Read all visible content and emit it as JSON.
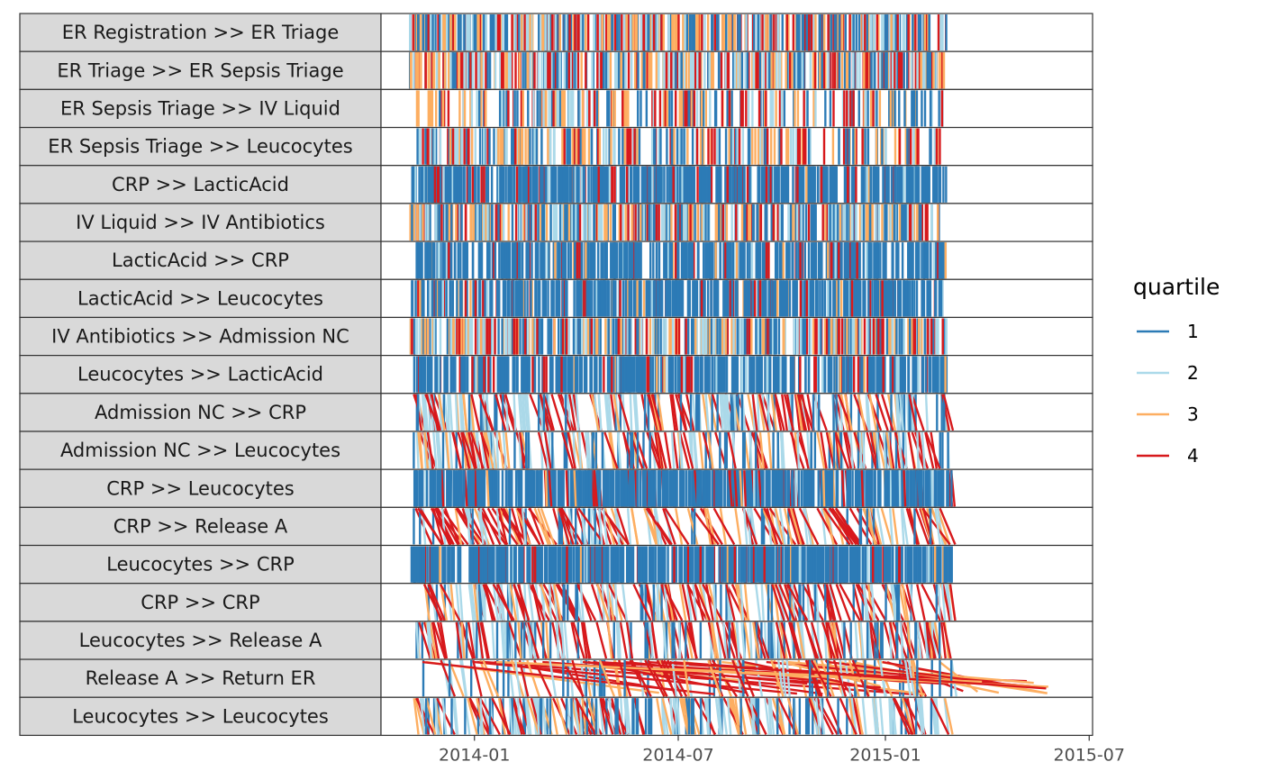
{
  "chart_data": {
    "type": "line",
    "chart_style": "faceted dotted chart of activity transitions (segment from start to end time)",
    "title": "",
    "xlabel": "",
    "ylabel": "",
    "x_type": "date",
    "xlim": [
      "2013-10-10",
      "2015-07-04"
    ],
    "x_ticks": [
      "2014-01-01",
      "2014-07-01",
      "2015-01-01",
      "2015-07-01"
    ],
    "x_tick_labels": [
      "2014-01",
      "2014-07",
      "2015-01",
      "2015-07"
    ],
    "grid": false,
    "legend": {
      "title": "quartile",
      "position": "right",
      "entries": [
        {
          "label": "1",
          "color": "#2c7bb6"
        },
        {
          "label": "2",
          "color": "#abd9e9"
        },
        {
          "label": "3",
          "color": "#fdae61"
        },
        {
          "label": "4",
          "color": "#d7191c"
        }
      ]
    },
    "facets": [
      {
        "label": "ER Registration >> ER Triage",
        "start": "2013-11-04",
        "end": "2015-02-26",
        "mix": [
          0.32,
          0.24,
          0.22,
          0.22
        ],
        "skew_days": 0,
        "long_q": null,
        "density": 520
      },
      {
        "label": "ER Triage >> ER Sepsis Triage",
        "start": "2013-11-04",
        "end": "2015-02-26",
        "mix": [
          0.3,
          0.24,
          0.22,
          0.24
        ],
        "skew_days": 0,
        "long_q": null,
        "density": 460
      },
      {
        "label": "ER Sepsis Triage >> IV Liquid",
        "start": "2013-11-10",
        "end": "2015-02-22",
        "mix": [
          0.3,
          0.24,
          0.22,
          0.24
        ],
        "skew_days": 0,
        "long_q": null,
        "density": 230
      },
      {
        "label": "ER Sepsis Triage >> Leucocytes",
        "start": "2013-11-10",
        "end": "2015-02-22",
        "mix": [
          0.3,
          0.24,
          0.22,
          0.24
        ],
        "skew_days": 0,
        "long_q": null,
        "density": 260
      },
      {
        "label": "CRP >> LacticAcid",
        "start": "2013-11-05",
        "end": "2015-02-26",
        "mix": [
          0.82,
          0.05,
          0.03,
          0.1
        ],
        "skew_days": 0,
        "long_q": null,
        "density": 520
      },
      {
        "label": "IV Liquid >> IV Antibiotics",
        "start": "2013-11-05",
        "end": "2015-02-22",
        "mix": [
          0.3,
          0.22,
          0.26,
          0.22
        ],
        "skew_days": 0,
        "long_q": null,
        "density": 460
      },
      {
        "label": "LacticAcid >> CRP",
        "start": "2013-11-10",
        "end": "2015-02-25",
        "mix": [
          0.88,
          0.04,
          0.02,
          0.06
        ],
        "skew_days": 0,
        "long_q": null,
        "density": 420
      },
      {
        "label": "LacticAcid >> Leucocytes",
        "start": "2013-11-05",
        "end": "2015-02-25",
        "mix": [
          0.8,
          0.05,
          0.04,
          0.11
        ],
        "skew_days": 0,
        "long_q": null,
        "density": 460
      },
      {
        "label": "IV Antibiotics >> Admission NC",
        "start": "2013-11-05",
        "end": "2015-02-26",
        "mix": [
          0.3,
          0.24,
          0.24,
          0.22
        ],
        "skew_days": 0,
        "long_q": null,
        "density": 460
      },
      {
        "label": "Leucocytes >> LacticAcid",
        "start": "2013-11-08",
        "end": "2015-02-25",
        "mix": [
          0.8,
          0.05,
          0.04,
          0.11
        ],
        "skew_days": 0,
        "long_q": null,
        "density": 440
      },
      {
        "label": "Admission NC >> CRP",
        "start": "2013-11-08",
        "end": "2015-02-26",
        "mix": [
          0.25,
          0.33,
          0.17,
          0.25
        ],
        "skew_days": 4,
        "long_q": null,
        "density": 240
      },
      {
        "label": "Admission NC >> Leucocytes",
        "start": "2013-11-06",
        "end": "2015-02-26",
        "mix": [
          0.25,
          0.33,
          0.17,
          0.25
        ],
        "skew_days": 4,
        "long_q": null,
        "density": 240
      },
      {
        "label": "CRP >> Leucocytes",
        "start": "2013-11-06",
        "end": "2015-03-01",
        "mix": [
          0.86,
          0.03,
          0.02,
          0.09
        ],
        "skew_days": 1,
        "long_q": null,
        "density": 600
      },
      {
        "label": "CRP >> Release A",
        "start": "2013-11-08",
        "end": "2015-02-28",
        "mix": [
          0.14,
          0.22,
          0.22,
          0.42
        ],
        "skew_days": 8,
        "long_q": null,
        "density": 200
      },
      {
        "label": "Leucocytes >> CRP",
        "start": "2013-11-04",
        "end": "2015-03-01",
        "mix": [
          0.88,
          0.03,
          0.02,
          0.07
        ],
        "skew_days": 0,
        "long_q": null,
        "density": 620
      },
      {
        "label": "CRP >> CRP",
        "start": "2013-11-10",
        "end": "2015-02-28",
        "mix": [
          0.18,
          0.3,
          0.14,
          0.38
        ],
        "skew_days": 6,
        "long_q": null,
        "density": 220
      },
      {
        "label": "Leucocytes >> Release A",
        "start": "2013-11-10",
        "end": "2015-02-24",
        "mix": [
          0.22,
          0.3,
          0.14,
          0.34
        ],
        "skew_days": 4,
        "long_q": null,
        "density": 240
      },
      {
        "label": "Release A >> Return ER",
        "start": "2013-11-12",
        "end": "2015-03-01",
        "mix": [
          0.22,
          0.22,
          0.22,
          0.34
        ],
        "skew_days": 8,
        "long_q": "2015-06-04",
        "density": 150
      },
      {
        "label": "Leucocytes >> Leucocytes",
        "start": "2013-11-08",
        "end": "2015-02-26",
        "mix": [
          0.3,
          0.35,
          0.15,
          0.2
        ],
        "skew_days": 6,
        "long_q": null,
        "density": 260
      }
    ]
  }
}
